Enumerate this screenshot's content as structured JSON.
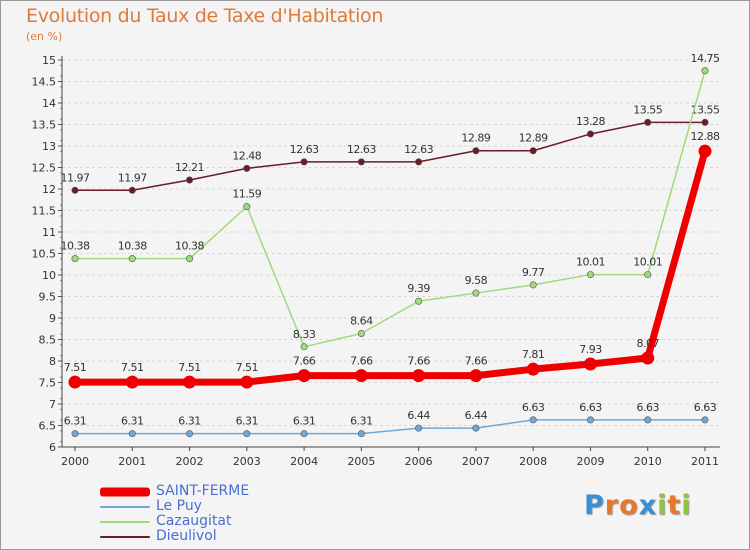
{
  "title": "Evolution du Taux de Taxe d'Habitation",
  "subtitle": "(en %)",
  "logo": {
    "text": "Proxiti",
    "letter_colors": [
      "#3a8fd4",
      "#e8762c",
      "#e8762c",
      "#3a8fd4",
      "#8cc63f",
      "#e8762c",
      "#8cc63f"
    ]
  },
  "chart_data": {
    "type": "line",
    "x": [
      2000,
      2001,
      2002,
      2003,
      2004,
      2005,
      2006,
      2007,
      2008,
      2009,
      2010,
      2011
    ],
    "ylim": [
      6,
      15
    ],
    "ytick_step": 0.5,
    "ytick_labels": [
      "6",
      "6.5",
      "7",
      "7.5",
      "8",
      "8.5",
      "9",
      "9.5",
      "10",
      "10.5",
      "11",
      "11.5",
      "12",
      "12.5",
      "13",
      "13.5",
      "14",
      "14.5",
      "15"
    ],
    "xlabel": "",
    "ylabel": "",
    "grid": "horizontal",
    "legend_position": "bottom-left",
    "series": [
      {
        "name": "Dieulivol",
        "color": "#6b1c26",
        "values": [
          11.97,
          11.97,
          12.21,
          12.48,
          12.63,
          12.63,
          12.63,
          12.89,
          12.89,
          13.28,
          13.55,
          13.55
        ],
        "labels": [
          "11.97",
          "11.97",
          "12.21",
          "12.48",
          "12.63",
          "12.63",
          "12.63",
          "12.89",
          "12.89",
          "13.28",
          "13.55",
          "13.55"
        ]
      },
      {
        "name": "Cazaugitat",
        "color": "#9edb7a",
        "values": [
          10.38,
          10.38,
          10.38,
          11.59,
          8.33,
          8.64,
          9.39,
          9.58,
          9.77,
          10.01,
          10.01,
          14.75
        ],
        "labels": [
          "10.38",
          "10.38",
          "10.38",
          "11.59",
          "8.33",
          "8.64",
          "9.39",
          "9.58",
          "9.77",
          "10.01",
          "10.01",
          "14.75"
        ]
      },
      {
        "name": "Le Puy",
        "color": "#6fa8d8",
        "values": [
          6.31,
          6.31,
          6.31,
          6.31,
          6.31,
          6.31,
          6.44,
          6.44,
          6.63,
          6.63,
          6.63,
          6.63
        ],
        "labels": [
          "6.31",
          "6.31",
          "6.31",
          "6.31",
          "6.31",
          "6.31",
          "6.44",
          "6.44",
          "6.63",
          "6.63",
          "6.63",
          "6.63"
        ]
      },
      {
        "name": "SAINT-FERME",
        "color": "#ee0000",
        "values": [
          7.51,
          7.51,
          7.51,
          7.51,
          7.66,
          7.66,
          7.66,
          7.66,
          7.81,
          7.93,
          8.07,
          12.88
        ],
        "labels": [
          "7.51",
          "7.51",
          "7.51",
          "7.51",
          "7.66",
          "7.66",
          "7.66",
          "7.66",
          "7.81",
          "7.93",
          "8.07",
          "12.88"
        ]
      }
    ],
    "legend_order": [
      "SAINT-FERME",
      "Le Puy",
      "Cazaugitat",
      "Dieulivol"
    ]
  }
}
